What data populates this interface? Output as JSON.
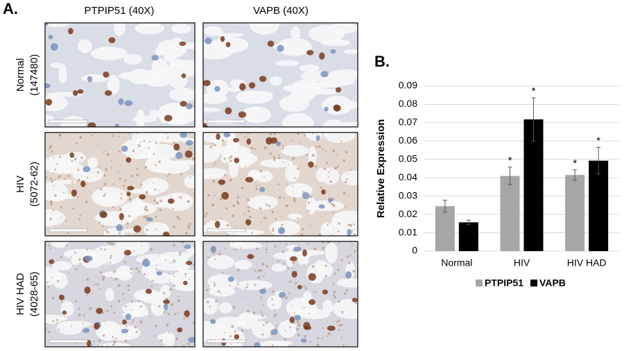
{
  "figure": {
    "panel_a": "A.",
    "panel_b": "B.",
    "columns": [
      "PTPIP51 (40X)",
      "VAPB (40X)"
    ],
    "rows": [
      [
        "Normal",
        "(147480)"
      ],
      [
        "HIV",
        "(5072-62)"
      ],
      [
        "HIV HAD",
        "(4028-65)"
      ]
    ]
  },
  "chart_data": {
    "type": "bar",
    "y_label": "Relative Expression",
    "categories": [
      "Normal",
      "HIV",
      "HIV HAD"
    ],
    "series": [
      {
        "name": "PTPIP51",
        "color": "#a6a6a6",
        "values": [
          0.0245,
          0.041,
          0.0415
        ],
        "errors": [
          0.0033,
          0.0048,
          0.0028
        ],
        "labels": [
          null,
          "*",
          "*"
        ]
      },
      {
        "name": "VAPB",
        "color": "#000000",
        "values": [
          0.0157,
          0.0718,
          0.0493
        ],
        "errors": [
          0.0012,
          0.0118,
          0.0073
        ],
        "labels": [
          null,
          "*",
          "*"
        ]
      }
    ],
    "ylim": [
      0,
      0.09
    ],
    "yticks": [
      0,
      0.01,
      0.02,
      0.03,
      0.04,
      0.05,
      0.06,
      0.07,
      0.08,
      0.09
    ],
    "grid": true,
    "legend": "bottom"
  }
}
